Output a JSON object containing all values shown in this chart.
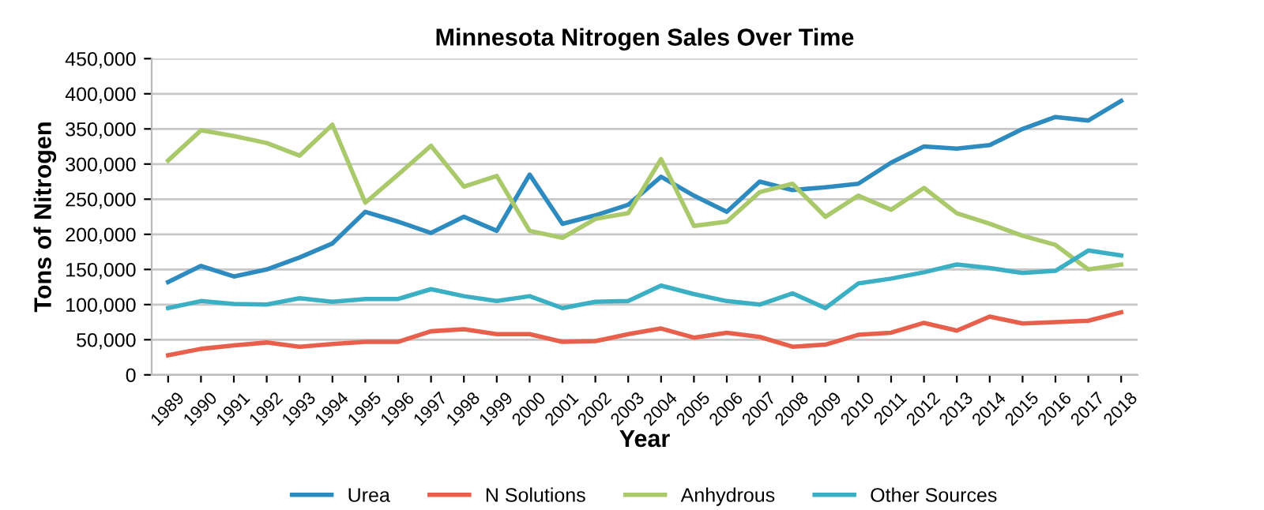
{
  "chart_data": {
    "type": "line",
    "title": "Minnesota Nitrogen Sales Over Time",
    "xlabel": "Year",
    "ylabel": "Tons of Nitrogen",
    "categories": [
      "1989",
      "1990",
      "1991",
      "1992",
      "1993",
      "1994",
      "1995",
      "1996",
      "1997",
      "1998",
      "1999",
      "2000",
      "2001",
      "2002",
      "2003",
      "2004",
      "2005",
      "2006",
      "2007",
      "2008",
      "2009",
      "2010",
      "2011",
      "2012",
      "2013",
      "2014",
      "2015",
      "2016",
      "2017",
      "2018"
    ],
    "series": [
      {
        "name": "Urea",
        "color": "#2e8bc0",
        "values": [
          132000,
          155000,
          140000,
          150000,
          167000,
          187000,
          232000,
          218000,
          202000,
          225000,
          205000,
          285000,
          215000,
          227000,
          242000,
          282000,
          255000,
          232000,
          275000,
          263000,
          267000,
          272000,
          302000,
          325000,
          322000,
          327000,
          350000,
          367000,
          362000,
          390000
        ]
      },
      {
        "name": "N Solutions",
        "color": "#e8604c",
        "values": [
          28000,
          37000,
          42000,
          46000,
          40000,
          44000,
          47000,
          47000,
          62000,
          65000,
          58000,
          58000,
          47000,
          48000,
          58000,
          66000,
          53000,
          60000,
          54000,
          40000,
          43000,
          57000,
          60000,
          74000,
          63000,
          83000,
          73000,
          75000,
          77000,
          89000
        ]
      },
      {
        "name": "Anhydrous",
        "color": "#a9c96a",
        "values": [
          305000,
          348000,
          340000,
          330000,
          312000,
          356000,
          245000,
          285000,
          326000,
          268000,
          283000,
          205000,
          195000,
          222000,
          230000,
          307000,
          212000,
          218000,
          260000,
          272000,
          225000,
          255000,
          235000,
          266000,
          230000,
          215000,
          198000,
          185000,
          150000,
          157000
        ]
      },
      {
        "name": "Other Sources",
        "color": "#3bb0c4",
        "values": [
          95000,
          105000,
          101000,
          100000,
          109000,
          104000,
          108000,
          108000,
          122000,
          112000,
          105000,
          112000,
          95000,
          104000,
          105000,
          127000,
          115000,
          105000,
          100000,
          116000,
          95000,
          130000,
          137000,
          146000,
          157000,
          152000,
          145000,
          148000,
          177000,
          170000
        ]
      }
    ],
    "ylim": [
      0,
      450000
    ],
    "yticks": [
      {
        "value": 0,
        "label": "0"
      },
      {
        "value": 50000,
        "label": "50,000"
      },
      {
        "value": 100000,
        "label": "100,000"
      },
      {
        "value": 150000,
        "label": "150,000"
      },
      {
        "value": 200000,
        "label": "200,000"
      },
      {
        "value": 250000,
        "label": "250,000"
      },
      {
        "value": 300000,
        "label": "300,000"
      },
      {
        "value": 350000,
        "label": "350,000"
      },
      {
        "value": 400000,
        "label": "400,000"
      },
      {
        "value": 450000,
        "label": "450,000"
      }
    ],
    "grid": "y",
    "legend": "bottom",
    "marker": "none",
    "line_style": "solid"
  }
}
